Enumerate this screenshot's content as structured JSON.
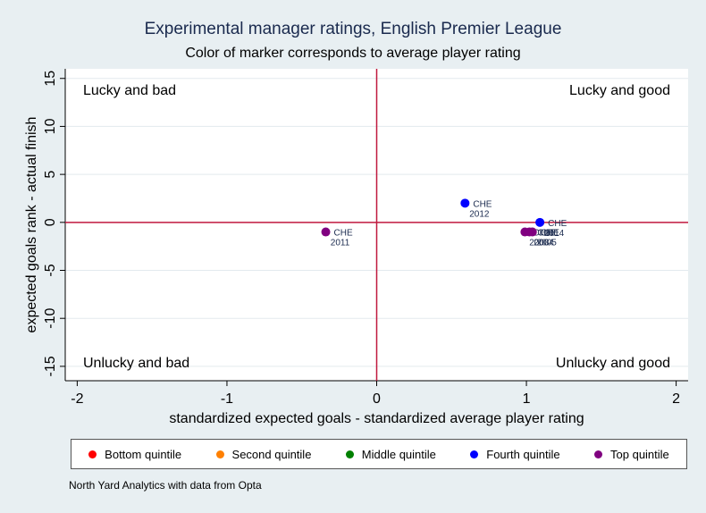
{
  "chart_data": {
    "type": "scatter",
    "title": "Experimental manager ratings, English Premier League",
    "subtitle": "Color of marker corresponds to average player rating",
    "xlabel": "standardized expected goals - standardized average player rating",
    "ylabel": "expected goals rank - actual finish",
    "xlim": [
      -2.08,
      2.08
    ],
    "ylim": [
      -16.5,
      16
    ],
    "xticks": [
      -2,
      -1,
      0,
      1,
      2
    ],
    "yticks": [
      -15,
      -10,
      -5,
      0,
      5,
      10,
      15
    ],
    "grid": true,
    "reference_lines": {
      "x": 0,
      "y": 0,
      "color": "#c0183e"
    },
    "quadrant_labels": {
      "top_left": "Lucky and bad",
      "top_right": "Lucky and good",
      "bottom_left": "Unlucky and bad",
      "bottom_right": "Unlucky and good"
    },
    "legend": {
      "placement": "bottom",
      "entries": [
        {
          "label": "Bottom quintile",
          "color": "#ff0000"
        },
        {
          "label": "Second quintile",
          "color": "#ff8000"
        },
        {
          "label": "Middle quintile",
          "color": "#008000"
        },
        {
          "label": "Fourth quintile",
          "color": "#0000ff"
        },
        {
          "label": "Top quintile",
          "color": "#800080"
        }
      ]
    },
    "points": [
      {
        "team": "CHE",
        "year": "2011",
        "x": -0.34,
        "y": -1,
        "quintile": "Top quintile",
        "color": "#800080"
      },
      {
        "team": "CHE",
        "year": "2012",
        "x": 0.59,
        "y": 2,
        "quintile": "Fourth quintile",
        "color": "#0000ff"
      },
      {
        "team": "CHE",
        "year": "2014",
        "x": 1.09,
        "y": 0,
        "quintile": "Fourth quintile",
        "color": "#0000ff"
      },
      {
        "team": "CHE",
        "year": "2003",
        "x": 0.99,
        "y": -1,
        "quintile": "Top quintile",
        "color": "#800080"
      },
      {
        "team": "CHE",
        "year": "2004",
        "x": 1.02,
        "y": -1,
        "quintile": "Top quintile",
        "color": "#800080"
      },
      {
        "team": "CHE",
        "year": "2005",
        "x": 1.04,
        "y": -1,
        "quintile": "Top quintile",
        "color": "#800080"
      }
    ]
  },
  "note": "North Yard Analytics with data from Opta"
}
